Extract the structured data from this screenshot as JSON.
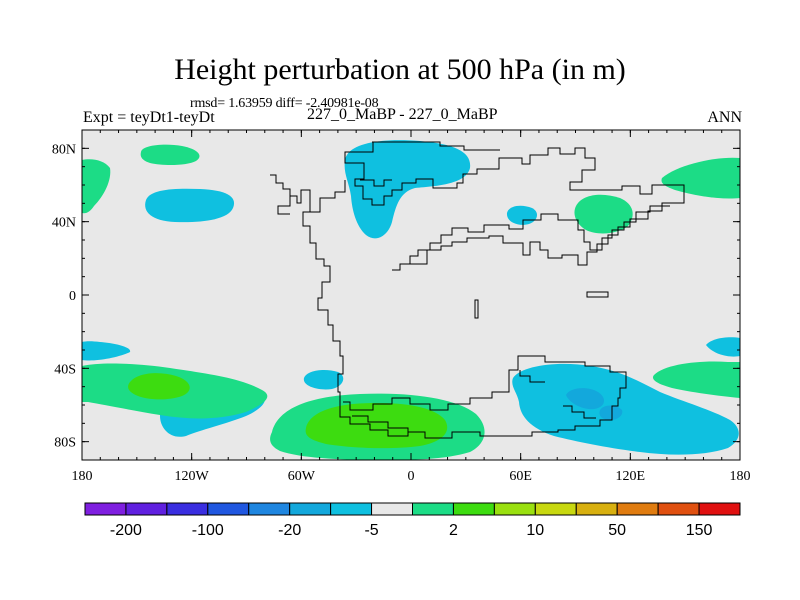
{
  "title": "Height perturbation at 500 hPa (in m)",
  "rmsd_line": "rmsd= 1.63959 diff= -2.40981e-08",
  "expt_label": "Expt = teyDt1-teyDt",
  "case_label": "227_0_MaBP - 227_0_MaBP",
  "season_label": "ANN",
  "y_axis": {
    "ticks": [
      80,
      40,
      0,
      -40,
      -80
    ],
    "labels": [
      "80N",
      "40N",
      "0",
      "40S",
      "80S"
    ]
  },
  "x_axis": {
    "ticks": [
      -180,
      -120,
      -60,
      0,
      60,
      120,
      180
    ],
    "labels": [
      "180",
      "120W",
      "60W",
      "0",
      "60E",
      "120E",
      "180"
    ]
  },
  "colorbar": {
    "colors": [
      "#7f1fe0",
      "#6020e0",
      "#3a2ee0",
      "#2057e0",
      "#1f86e0",
      "#13a8dc",
      "#0fc0e0",
      "#e8e8e8",
      "#1cdc86",
      "#3ddc10",
      "#9ae010",
      "#c8d810",
      "#d8b010",
      "#e07c10",
      "#e05010",
      "#e01010"
    ],
    "labels": [
      "-200",
      "-100",
      "-20",
      "-5",
      "2",
      "10",
      "50",
      "150"
    ],
    "label_boundaries": [
      1,
      3,
      5,
      7,
      9,
      11,
      13,
      15
    ]
  },
  "colors": {
    "background": "#e8e8e8",
    "cyan": "#0fc0e0",
    "green": "#1cdc86",
    "bright_green": "#3ddc10"
  }
}
